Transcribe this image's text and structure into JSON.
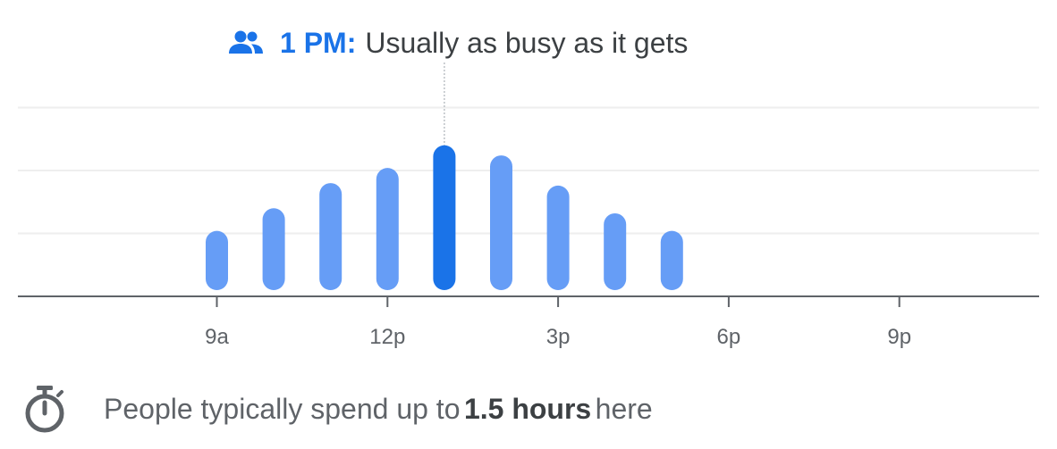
{
  "header": {
    "icon": "people-icon",
    "time": "1 PM",
    "separator": ":",
    "description": "Usually as busy as it gets"
  },
  "chart_data": {
    "type": "bar",
    "title": "",
    "xlabel": "",
    "ylabel": "",
    "x_range": [
      6,
      24
    ],
    "ylim": [
      0,
      100
    ],
    "grid": true,
    "gridlines": [
      25,
      50,
      75
    ],
    "x_ticks": [
      {
        "value": 9,
        "label": "9a"
      },
      {
        "value": 12,
        "label": "12p"
      },
      {
        "value": 15,
        "label": "3p"
      },
      {
        "value": 18,
        "label": "6p"
      },
      {
        "value": 21,
        "label": "9p"
      }
    ],
    "hours": [
      9,
      10,
      11,
      12,
      13,
      14,
      15,
      16,
      17
    ],
    "values": [
      26,
      35,
      45,
      51,
      60,
      56,
      44,
      33,
      26
    ],
    "highlight_hour": 13,
    "colors": {
      "bar": "#669df6",
      "highlight": "#1a73e8",
      "axis": "#5f6368",
      "grid": "#eeeeee",
      "indicator": "#bdc1c6"
    }
  },
  "footer": {
    "icon": "timer-icon",
    "prefix": "People typically spend up to",
    "duration": "1.5 hours",
    "suffix": "here"
  }
}
